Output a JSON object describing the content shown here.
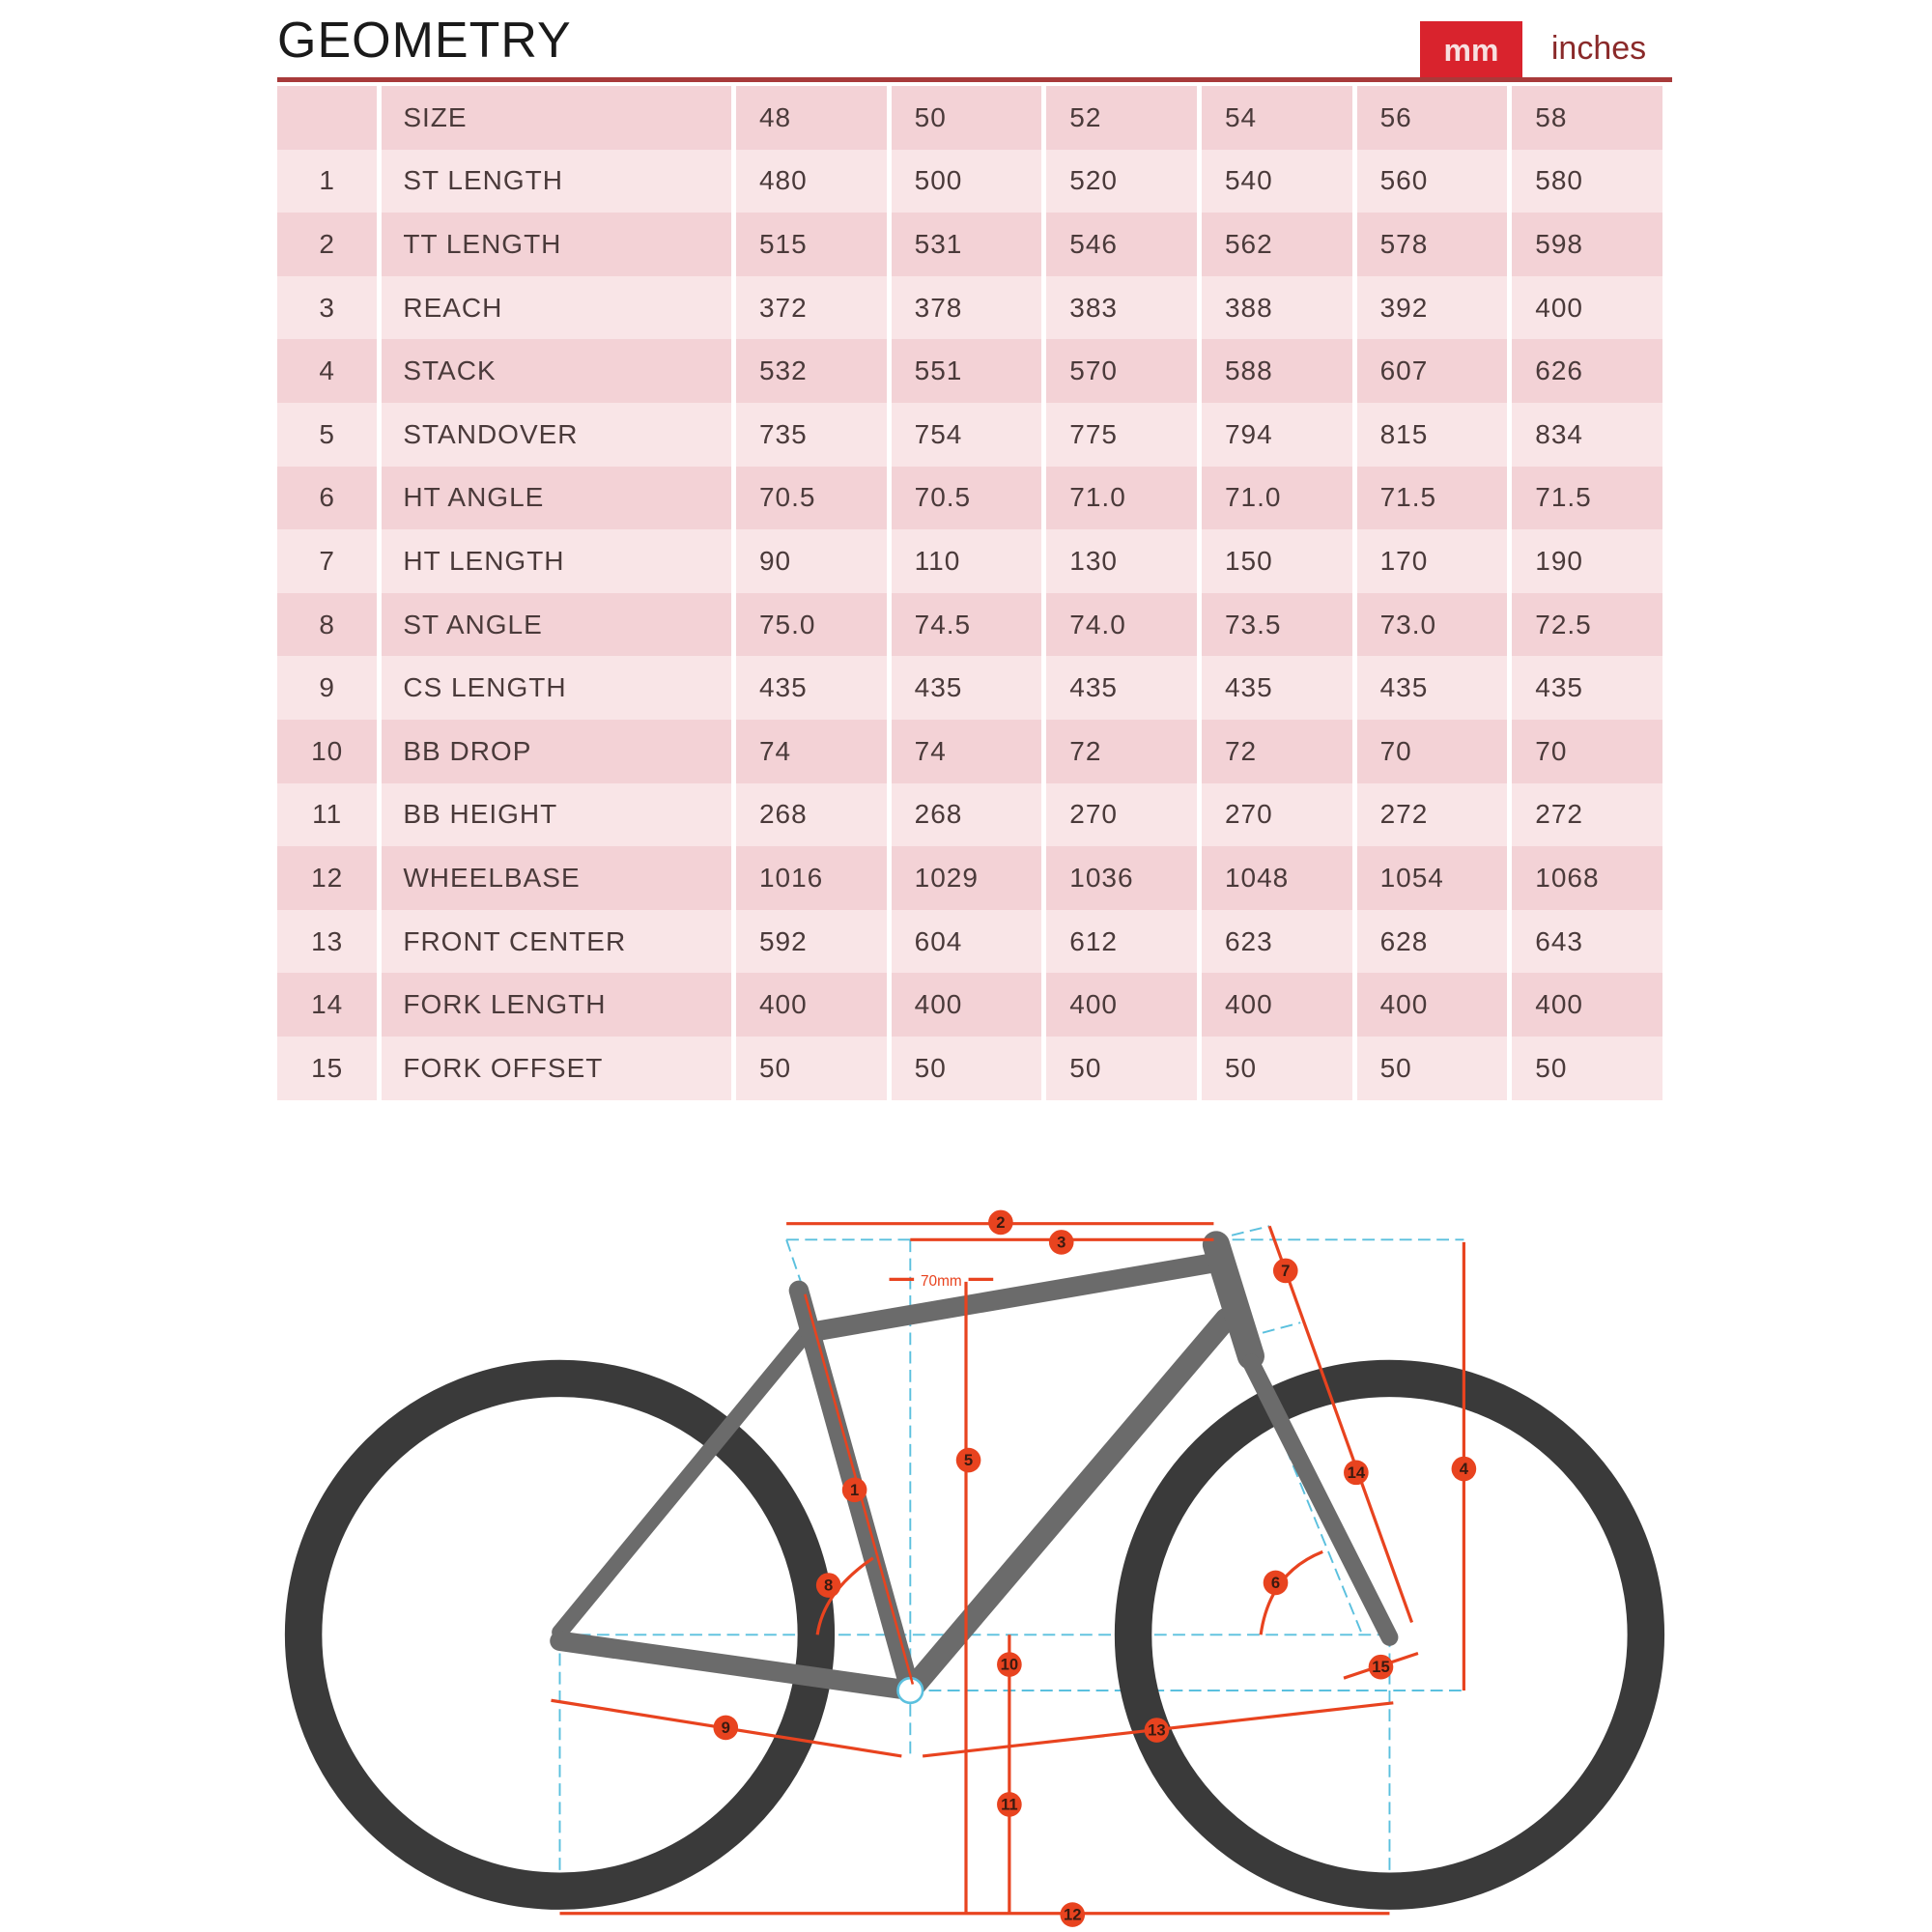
{
  "header": {
    "title": "GEOMETRY",
    "units": [
      {
        "label": "mm",
        "active": true
      },
      {
        "label": "inches",
        "active": false
      }
    ]
  },
  "colors": {
    "accent": "#d9232d",
    "row_dark": "#f3d2d6",
    "row_light": "#f9e5e7",
    "dimension": "#e8431f",
    "guide": "#5bc0de",
    "frame": "#6b6b6b",
    "tire": "#3a3a3a"
  },
  "table": {
    "size_label": "SIZE",
    "sizes": [
      "48",
      "50",
      "52",
      "54",
      "56",
      "58"
    ],
    "rows": [
      {
        "n": "1",
        "label": "ST LENGTH",
        "values": [
          "480",
          "500",
          "520",
          "540",
          "560",
          "580"
        ]
      },
      {
        "n": "2",
        "label": "TT LENGTH",
        "values": [
          "515",
          "531",
          "546",
          "562",
          "578",
          "598"
        ]
      },
      {
        "n": "3",
        "label": "REACH",
        "values": [
          "372",
          "378",
          "383",
          "388",
          "392",
          "400"
        ]
      },
      {
        "n": "4",
        "label": "STACK",
        "values": [
          "532",
          "551",
          "570",
          "588",
          "607",
          "626"
        ]
      },
      {
        "n": "5",
        "label": "STANDOVER",
        "values": [
          "735",
          "754",
          "775",
          "794",
          "815",
          "834"
        ]
      },
      {
        "n": "6",
        "label": "HT ANGLE",
        "values": [
          "70.5",
          "70.5",
          "71.0",
          "71.0",
          "71.5",
          "71.5"
        ]
      },
      {
        "n": "7",
        "label": "HT LENGTH",
        "values": [
          "90",
          "110",
          "130",
          "150",
          "170",
          "190"
        ]
      },
      {
        "n": "8",
        "label": "ST ANGLE",
        "values": [
          "75.0",
          "74.5",
          "74.0",
          "73.5",
          "73.0",
          "72.5"
        ]
      },
      {
        "n": "9",
        "label": "CS LENGTH",
        "values": [
          "435",
          "435",
          "435",
          "435",
          "435",
          "435"
        ]
      },
      {
        "n": "10",
        "label": "BB DROP",
        "values": [
          "74",
          "74",
          "72",
          "72",
          "70",
          "70"
        ]
      },
      {
        "n": "11",
        "label": "BB HEIGHT",
        "values": [
          "268",
          "268",
          "270",
          "270",
          "272",
          "272"
        ]
      },
      {
        "n": "12",
        "label": "WHEELBASE",
        "values": [
          "1016",
          "1029",
          "1036",
          "1048",
          "1054",
          "1068"
        ]
      },
      {
        "n": "13",
        "label": "FRONT CENTER",
        "values": [
          "592",
          "604",
          "612",
          "623",
          "628",
          "643"
        ]
      },
      {
        "n": "14",
        "label": "FORK LENGTH",
        "values": [
          "400",
          "400",
          "400",
          "400",
          "400",
          "400"
        ]
      },
      {
        "n": "15",
        "label": "FORK OFFSET",
        "values": [
          "50",
          "50",
          "50",
          "50",
          "50",
          "50"
        ]
      }
    ]
  },
  "diagram": {
    "offset_label": "70mm",
    "markers": [
      "1",
      "2",
      "3",
      "4",
      "5",
      "6",
      "7",
      "8",
      "9",
      "10",
      "11",
      "12",
      "13",
      "14",
      "15"
    ]
  }
}
